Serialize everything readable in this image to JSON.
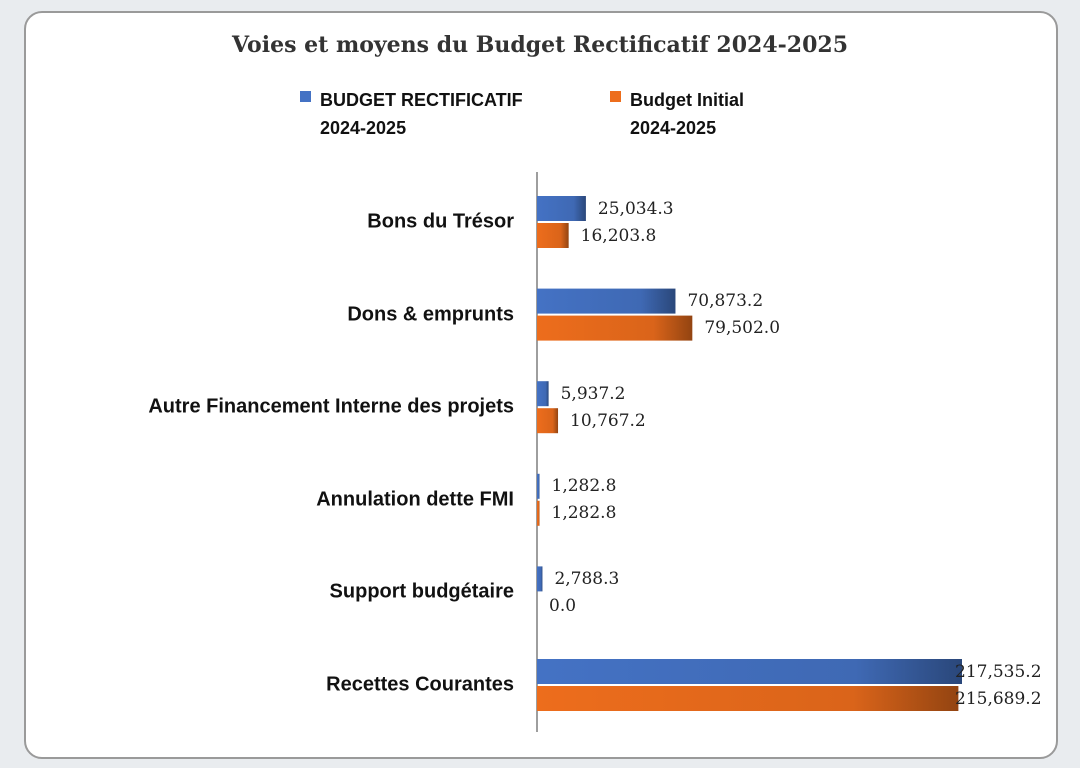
{
  "chart_data": {
    "type": "bar",
    "orientation": "horizontal",
    "title": "Voies et moyens du Budget Rectificatif 2024-2025",
    "categories": [
      "Bons du Trésor",
      "Dons & emprunts",
      "Autre Financement Interne des projets",
      "Annulation dette FMI",
      "Support budgétaire",
      "Recettes Courantes"
    ],
    "series": [
      {
        "name": "BUDGET RECTIFICATIF 2024-2025",
        "legend_lines": [
          "BUDGET RECTIFICATIF",
          "2024-2025"
        ],
        "color": "#4472c4",
        "values": [
          25034.3,
          70873.2,
          5937.2,
          1282.8,
          2788.3,
          217535.2
        ],
        "labels": [
          "25,034.3",
          "70,873.2",
          "5,937.2",
          "1,282.8",
          "2,788.3",
          "217,535.2"
        ]
      },
      {
        "name": "Budget Initial 2024-2025",
        "legend_lines": [
          "Budget Initial",
          "2024-2025"
        ],
        "color": "#ed6d1c",
        "values": [
          16203.8,
          79502.0,
          10767.2,
          1282.8,
          0.0,
          215689.2
        ],
        "labels": [
          "16,203.8",
          "79,502.0",
          "10,767.2",
          "1,282.8",
          "0.0",
          "215,689.2"
        ]
      }
    ],
    "xlim": [
      0,
      217535.2
    ],
    "legend_position": "top",
    "grid": false
  }
}
